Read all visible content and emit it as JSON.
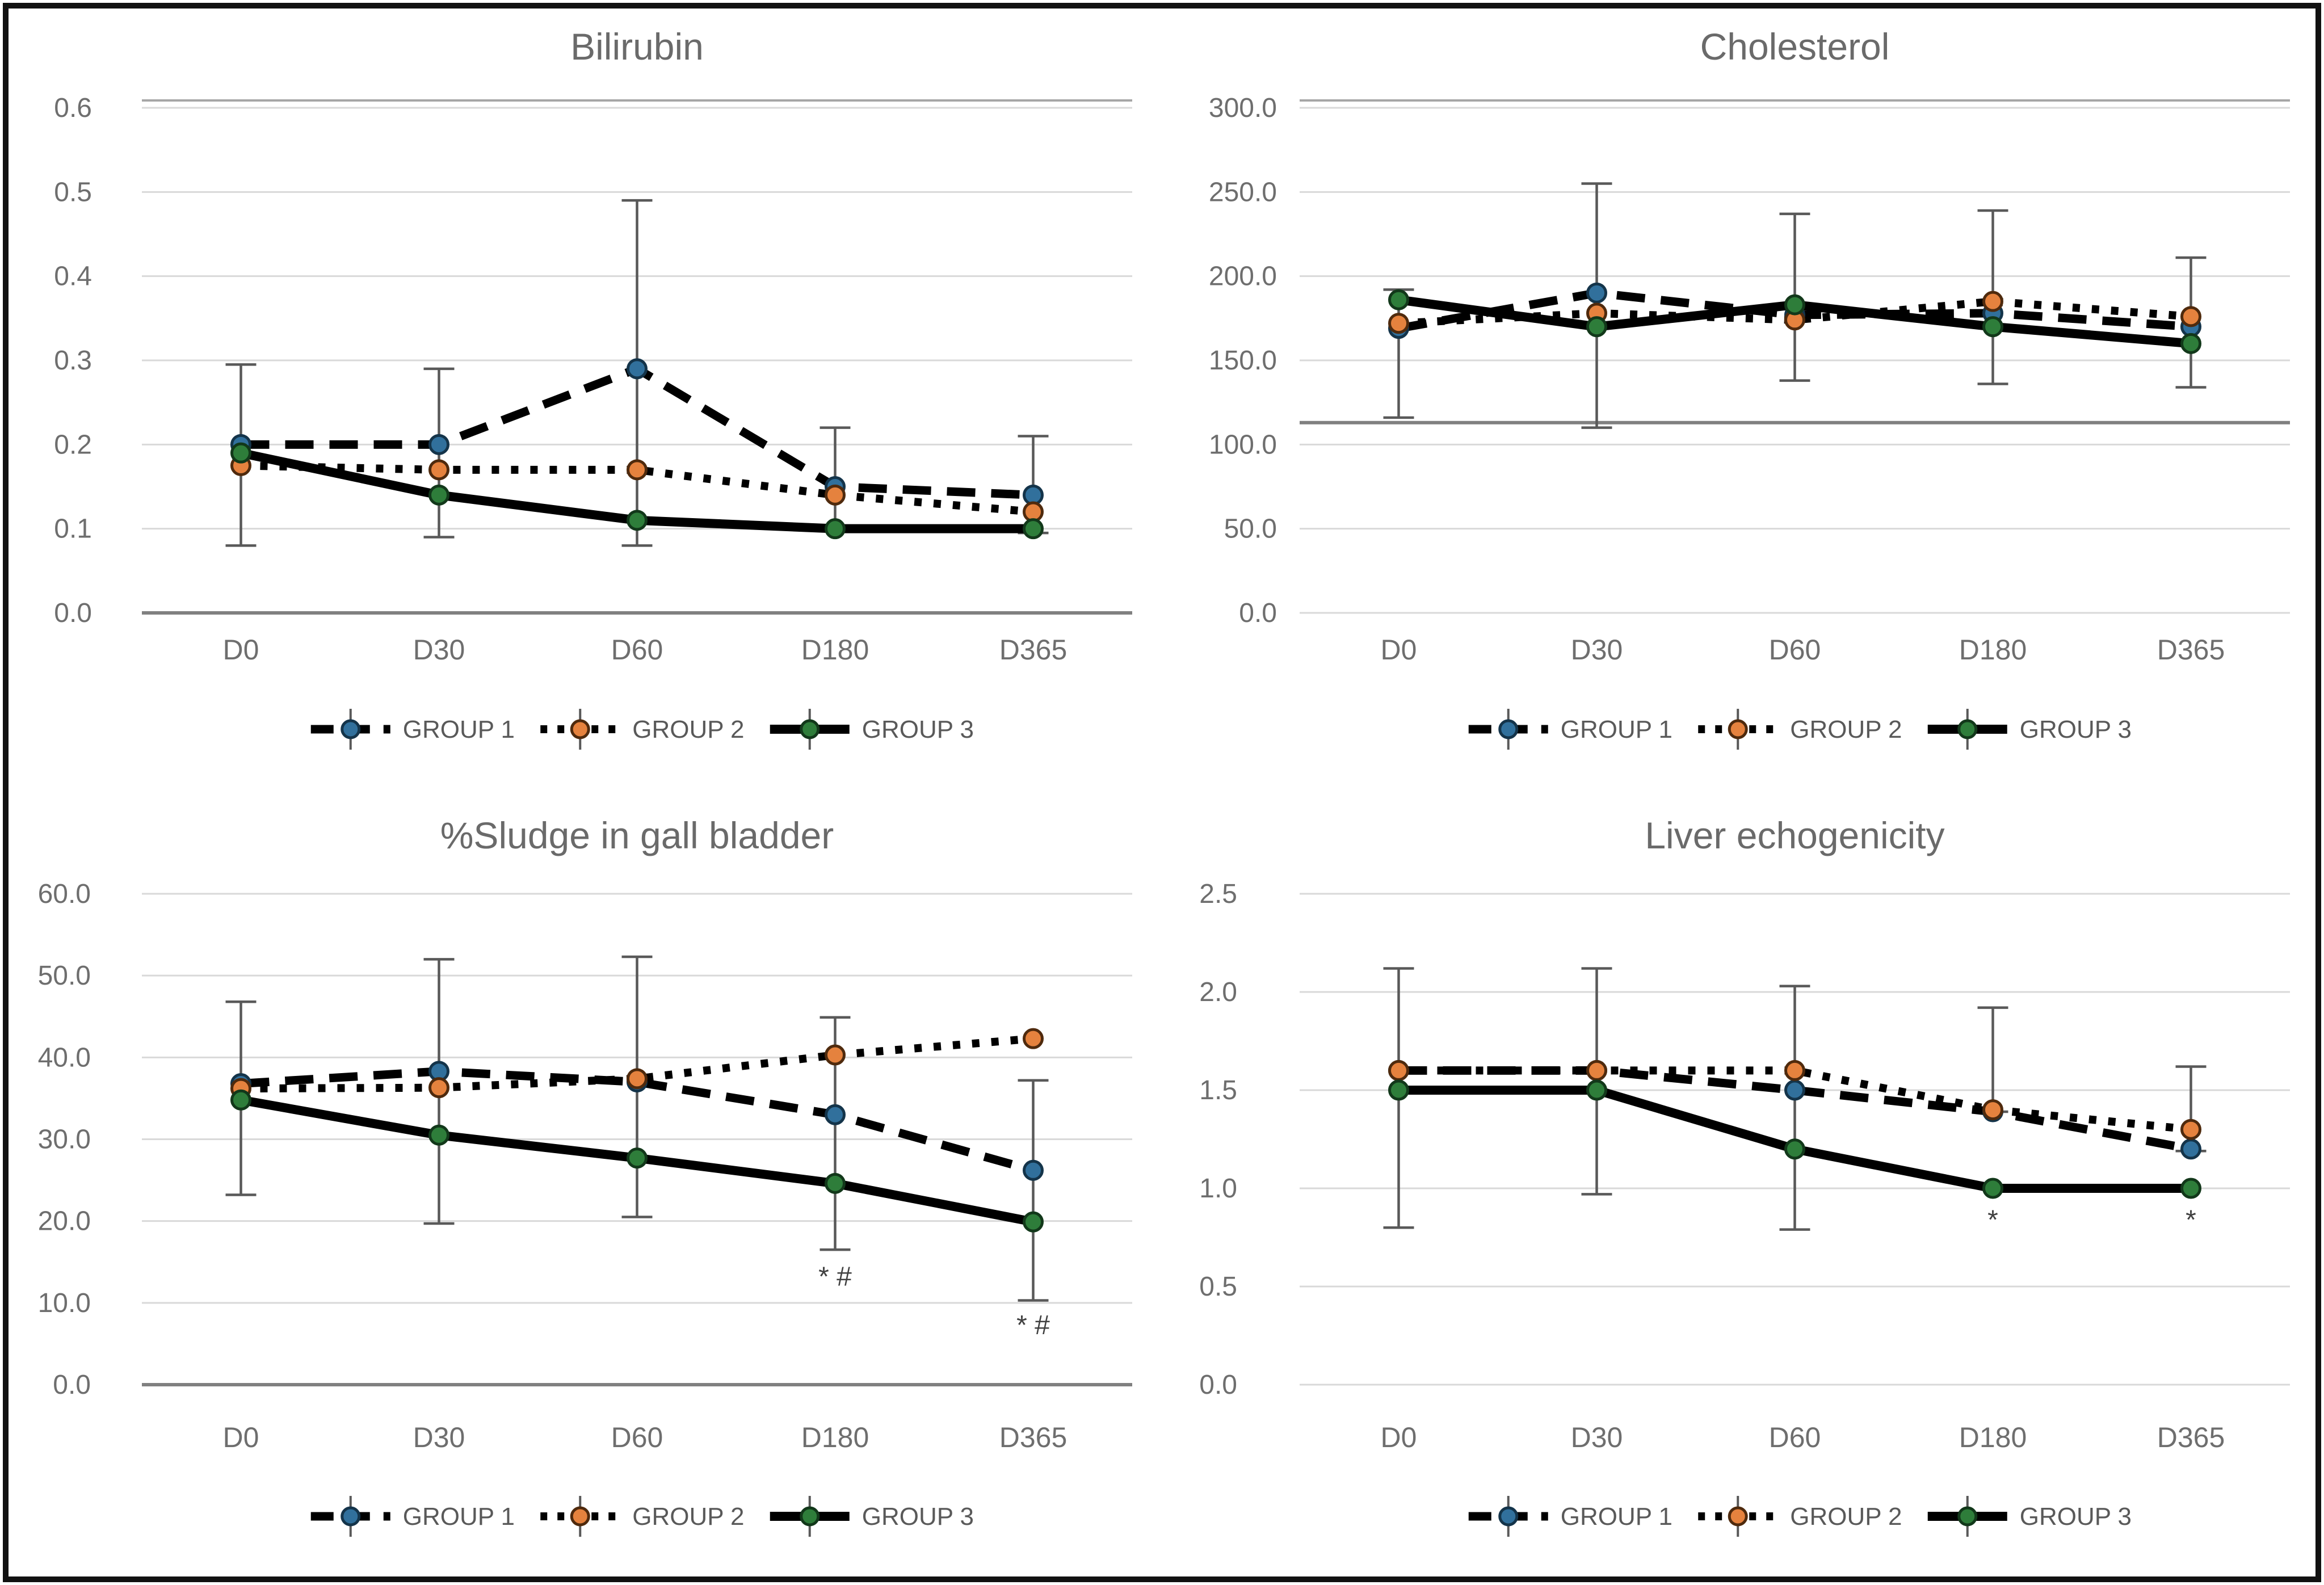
{
  "figure": {
    "background": "#ffffff",
    "border_color": "#111111"
  },
  "colors": {
    "grid": "#d9d9d9",
    "axis": "#808080",
    "top_border": "#a6a6a6",
    "error_bar": "#595959",
    "tick_text": "#6e6e6e",
    "title_text": "#6a6a6a",
    "legend_text": "#595959",
    "annotation_text": "#404040",
    "line": "#000000"
  },
  "groups": [
    {
      "label": "GROUP 1",
      "line_style": "dashed",
      "marker_fill": "#31709c",
      "marker_stroke": "#14344a"
    },
    {
      "label": "GROUP 2",
      "line_style": "dotted",
      "marker_fill": "#e5823e",
      "marker_stroke": "#4f2a0d"
    },
    {
      "label": "GROUP 3",
      "line_style": "solid",
      "marker_fill": "#2e7d3a",
      "marker_stroke": "#12381a"
    }
  ],
  "chart_data": [
    {
      "type": "line",
      "id": "bilirubin",
      "title": "Bilirubin",
      "categories": [
        "D0",
        "D30",
        "D60",
        "D180",
        "D365"
      ],
      "ylim": [
        0,
        0.6
      ],
      "yticks": [
        0,
        0.1,
        0.2,
        0.3,
        0.4,
        0.5,
        0.6
      ],
      "ytick_labels": [
        "0.0",
        "0.1",
        "0.2",
        "0.3",
        "0.4",
        "0.5",
        "0.6"
      ],
      "grid": true,
      "legend_position": "bottom",
      "has_top_border": true,
      "axis_line_value": 0,
      "series": [
        {
          "name": "GROUP 1",
          "values": [
            0.2,
            0.2,
            0.29,
            0.15,
            0.14
          ]
        },
        {
          "name": "GROUP 2",
          "values": [
            0.175,
            0.17,
            0.17,
            0.14,
            0.12
          ]
        },
        {
          "name": "GROUP 3",
          "values": [
            0.19,
            0.14,
            0.11,
            0.1,
            0.1
          ]
        }
      ],
      "error_bars": [
        {
          "category": "D0",
          "min": 0.08,
          "max": 0.295
        },
        {
          "category": "D30",
          "min": 0.09,
          "max": 0.29
        },
        {
          "category": "D60",
          "min": 0.08,
          "max": 0.49
        },
        {
          "category": "D180",
          "min": 0.1,
          "max": 0.22
        },
        {
          "category": "D365",
          "min": 0.095,
          "max": 0.21
        }
      ],
      "annotations": []
    },
    {
      "type": "line",
      "id": "cholesterol",
      "title": "Cholesterol",
      "categories": [
        "D0",
        "D30",
        "D60",
        "D180",
        "D365"
      ],
      "ylim": [
        0,
        300
      ],
      "yticks": [
        0,
        50,
        100,
        150,
        200,
        250,
        300
      ],
      "ytick_labels": [
        "0.0",
        "50.0",
        "100.0",
        "150.0",
        "200.0",
        "250.0",
        "300.0"
      ],
      "grid": true,
      "legend_position": "bottom",
      "has_top_border": true,
      "axis_line_value": 113,
      "series": [
        {
          "name": "GROUP 1",
          "values": [
            169,
            190,
            177,
            178,
            170
          ]
        },
        {
          "name": "GROUP 2",
          "values": [
            172,
            178,
            174,
            185,
            176
          ]
        },
        {
          "name": "GROUP 3",
          "values": [
            186,
            170,
            183,
            170,
            160
          ]
        }
      ],
      "error_bars": [
        {
          "category": "D0",
          "min": 116,
          "max": 192
        },
        {
          "category": "D30",
          "min": 110,
          "max": 255
        },
        {
          "category": "D60",
          "min": 138,
          "max": 237
        },
        {
          "category": "D180",
          "min": 136,
          "max": 239
        },
        {
          "category": "D365",
          "min": 134,
          "max": 211
        }
      ],
      "annotations": []
    },
    {
      "type": "line",
      "id": "sludge",
      "title": "%Sludge in gall bladder",
      "categories": [
        "D0",
        "D30",
        "D60",
        "D180",
        "D365"
      ],
      "ylim": [
        0,
        60
      ],
      "yticks": [
        0,
        10,
        20,
        30,
        40,
        50,
        60
      ],
      "ytick_labels": [
        "0.0",
        "10.0",
        "20.0",
        "30.0",
        "40.0",
        "50.0",
        "60.0"
      ],
      "grid": true,
      "legend_position": "bottom",
      "has_top_border": false,
      "axis_line_value": 0,
      "series": [
        {
          "name": "GROUP 1",
          "values": [
            36.8,
            38.3,
            37.0,
            33.0,
            26.2
          ]
        },
        {
          "name": "GROUP 2",
          "values": [
            36.2,
            36.3,
            37.4,
            40.3,
            42.3
          ]
        },
        {
          "name": "GROUP 3",
          "values": [
            34.8,
            30.5,
            27.7,
            24.6,
            19.9
          ]
        }
      ],
      "error_bars": [
        {
          "category": "D0",
          "min": 23.2,
          "max": 46.8
        },
        {
          "category": "D30",
          "min": 19.7,
          "max": 52.0
        },
        {
          "category": "D60",
          "min": 20.5,
          "max": 52.3
        },
        {
          "category": "D180",
          "min": 16.5,
          "max": 44.9
        },
        {
          "category": "D365",
          "min": 10.3,
          "max": 37.2
        }
      ],
      "annotations": [
        {
          "category": "D180",
          "value": 13.2,
          "text": "* #"
        },
        {
          "category": "D365",
          "value": 7.3,
          "text": "* #"
        }
      ]
    },
    {
      "type": "line",
      "id": "liver",
      "title": "Liver echogenicity",
      "categories": [
        "D0",
        "D30",
        "D60",
        "D180",
        "D365"
      ],
      "ylim": [
        0,
        2.5
      ],
      "yticks": [
        0,
        0.5,
        1.0,
        1.5,
        2.0,
        2.5
      ],
      "ytick_labels": [
        "0.0",
        "0.5",
        "1.0",
        "1.5",
        "2.0",
        "2.5"
      ],
      "grid": true,
      "legend_position": "bottom",
      "has_top_border": false,
      "axis_line_value": null,
      "series": [
        {
          "name": "GROUP 1",
          "values": [
            1.6,
            1.6,
            1.5,
            1.39,
            1.2
          ]
        },
        {
          "name": "GROUP 2",
          "values": [
            1.6,
            1.6,
            1.6,
            1.4,
            1.3
          ]
        },
        {
          "name": "GROUP 3",
          "values": [
            1.5,
            1.5,
            1.2,
            1.0,
            1.0
          ]
        }
      ],
      "error_bars": [
        {
          "category": "D0",
          "min": 0.8,
          "max": 2.12
        },
        {
          "category": "D30",
          "min": 0.97,
          "max": 2.12
        },
        {
          "category": "D60",
          "min": 0.79,
          "max": 2.03
        },
        {
          "category": "D180",
          "min": 1.39,
          "max": 1.92
        },
        {
          "category": "D365",
          "min": 1.19,
          "max": 1.62
        }
      ],
      "annotations": [
        {
          "category": "D180",
          "value": 0.84,
          "text": "*"
        },
        {
          "category": "D365",
          "value": 0.84,
          "text": "*"
        }
      ]
    }
  ]
}
